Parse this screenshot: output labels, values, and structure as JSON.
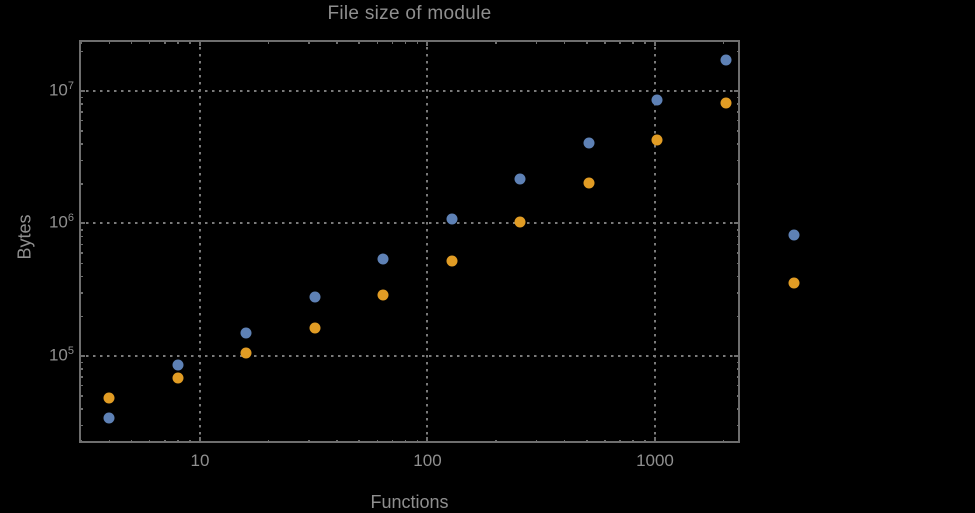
{
  "background_color": "#000000",
  "colors": {
    "frame": "#6e6e6e",
    "grid": "#7a7a7a",
    "text": "#8f8f8f",
    "series1": "#5E81B5",
    "series2": "#E19C24"
  },
  "chart_data": {
    "type": "scatter",
    "title": "File size of module",
    "xlabel": "Functions",
    "ylabel": "Bytes",
    "x_scale": "log",
    "y_scale": "log",
    "xlim": [
      2.94,
      2364
    ],
    "ylim": [
      22050,
      24250000
    ],
    "grid": "dotted",
    "legend": "none",
    "x_major_ticks": [
      {
        "value": 10,
        "label": "10"
      },
      {
        "value": 100,
        "label": "100"
      },
      {
        "value": 1000,
        "label": "1000"
      }
    ],
    "y_major_ticks": [
      {
        "value": 100000,
        "base": "10",
        "exp": "5"
      },
      {
        "value": 1000000,
        "base": "10",
        "exp": "6"
      },
      {
        "value": 10000000,
        "base": "10",
        "exp": "7"
      }
    ],
    "x": [
      4,
      8,
      16,
      32,
      64,
      128,
      256,
      512,
      1024,
      2048,
      4096
    ],
    "series": [
      {
        "name": "series-1-blue",
        "color": "#5E81B5",
        "values": [
          34000,
          85000,
          148000,
          280000,
          540000,
          1080000,
          2170000,
          4050000,
          8550000,
          17100000,
          820000
        ]
      },
      {
        "name": "series-2-orange",
        "color": "#E19C24",
        "values": [
          48000,
          68000,
          106000,
          163000,
          288000,
          520000,
          1030000,
          2020000,
          4270000,
          8120000,
          356000
        ]
      }
    ]
  }
}
